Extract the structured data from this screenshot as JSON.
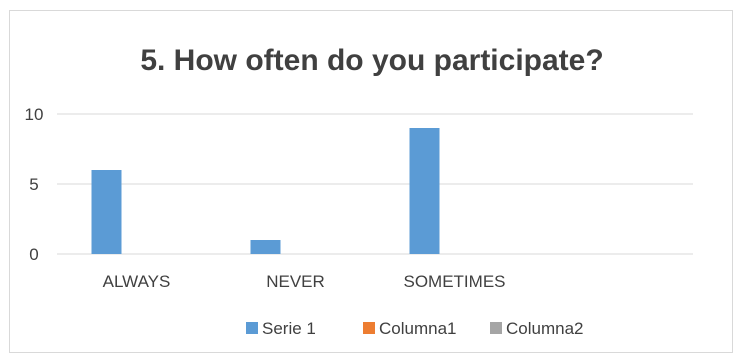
{
  "chart_data": {
    "type": "bar",
    "title": "5. How often do you participate?",
    "categories": [
      "ALWAYS",
      "NEVER",
      "SOMETIMES",
      ""
    ],
    "series": [
      {
        "name": "Serie 1",
        "values": [
          6,
          1,
          9,
          null
        ],
        "color": "#5b9bd5"
      },
      {
        "name": "Columna1",
        "values": [
          null,
          null,
          null,
          null
        ],
        "color": "#ed7d31"
      },
      {
        "name": "Columna2",
        "values": [
          null,
          null,
          null,
          null
        ],
        "color": "#a5a5a5"
      }
    ],
    "yticks": [
      0,
      5,
      10
    ],
    "ylim": [
      0,
      10
    ],
    "xlabel": "",
    "ylabel": "",
    "grid": true,
    "legend": "bottom",
    "colors": {
      "gridline": "#d9d9d9",
      "axis": "#d9d9d9",
      "text": "#404040"
    }
  }
}
